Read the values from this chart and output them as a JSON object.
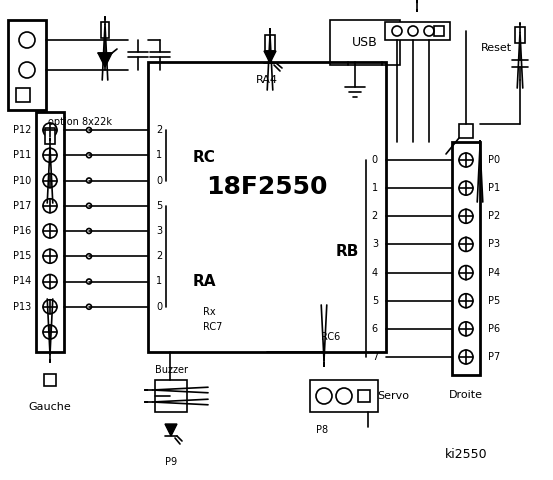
{
  "bg_color": "#ffffff",
  "chip_label": "18F2550",
  "chip_ra4": "RA4",
  "rc_label": "RC",
  "ra_label": "RA",
  "rb_label": "RB",
  "rx_label": "Rx",
  "rc7_label": "RC7",
  "rc6_label": "RC6",
  "usb_label": "USB",
  "reset_label": "Reset",
  "buzzer_label": "Buzzer",
  "p9_label": "P9",
  "p8_label": "P8",
  "servo_label": "Servo",
  "option_label": "option 8x22k",
  "gauche_label": "Gauche",
  "droite_label": "Droite",
  "title_label": "ki2550",
  "left_pins": [
    "P12",
    "P11",
    "P10",
    "P17",
    "P16",
    "P15",
    "P14",
    "P13"
  ],
  "right_pins": [
    "P0",
    "P1",
    "P2",
    "P3",
    "P4",
    "P5",
    "P6",
    "P7"
  ],
  "rc_pin_nums": [
    "2",
    "1",
    "0"
  ],
  "ra_pin_nums": [
    "5",
    "3",
    "2",
    "1",
    "0"
  ],
  "rb_pin_nums": [
    "0",
    "1",
    "2",
    "3",
    "4",
    "5",
    "6",
    "7"
  ]
}
